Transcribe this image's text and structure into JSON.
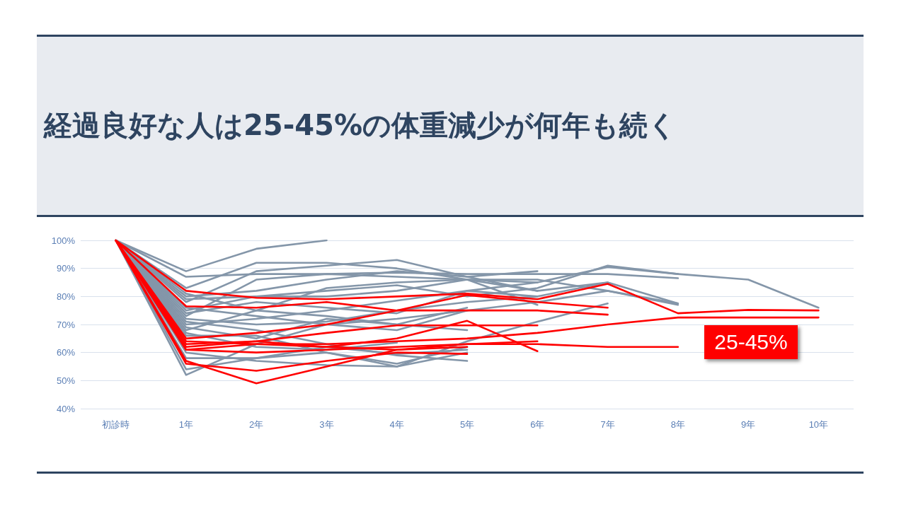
{
  "chart_data": {
    "type": "line",
    "title": "経過良好な人は25-45%の体重減少が何年も続く",
    "categories": [
      "初診時",
      "1年",
      "2年",
      "3年",
      "4年",
      "5年",
      "6年",
      "7年",
      "8年",
      "9年",
      "10年"
    ],
    "ylim": [
      40,
      100
    ],
    "yticks": [
      {
        "value": 40,
        "label": "40%"
      },
      {
        "value": 50,
        "label": "50%"
      },
      {
        "value": 60,
        "label": "60%"
      },
      {
        "value": 70,
        "label": "70%"
      },
      {
        "value": 80,
        "label": "80%"
      },
      {
        "value": 90,
        "label": "90%"
      },
      {
        "value": 100,
        "label": "100%"
      }
    ],
    "grid": "y",
    "marker": "none",
    "line_style": "solid",
    "annotations": [
      "25-45%"
    ],
    "series": [
      {
        "color": "#8496a9",
        "values": [
          100,
          89,
          97,
          100,
          null,
          null,
          null,
          null,
          null,
          null,
          null
        ]
      },
      {
        "color": "#8496a9",
        "values": [
          100,
          87,
          88,
          88,
          88.5,
          88,
          88,
          88,
          86.5,
          null,
          null
        ]
      },
      {
        "color": "#8496a9",
        "values": [
          100,
          83,
          92,
          92,
          90,
          86,
          85,
          90.5,
          88,
          86,
          76
        ]
      },
      {
        "color": "#8496a9",
        "values": [
          100,
          78,
          89,
          91,
          93,
          87,
          82,
          null,
          null,
          null,
          null
        ]
      },
      {
        "color": "#8496a9",
        "values": [
          100,
          80,
          82,
          86,
          89,
          87,
          89,
          null,
          null,
          null,
          null
        ]
      },
      {
        "color": "#8496a9",
        "values": [
          100,
          73,
          86,
          88,
          87,
          86,
          82,
          85,
          77.5,
          null,
          null
        ]
      },
      {
        "color": "#8496a9",
        "values": [
          100,
          75,
          80,
          82,
          84,
          80,
          83,
          91,
          88,
          null,
          null
        ]
      },
      {
        "color": "#8496a9",
        "values": [
          100,
          68,
          75,
          83,
          85,
          86,
          86,
          82,
          77.5,
          null,
          null
        ]
      },
      {
        "color": "#8496a9",
        "values": [
          100,
          70,
          72,
          75,
          78.5,
          82,
          80,
          85,
          null,
          null,
          null
        ]
      },
      {
        "color": "#8496a9",
        "values": [
          100,
          72,
          70,
          71,
          75,
          78,
          80,
          null,
          null,
          null,
          null
        ]
      },
      {
        "color": "#8496a9",
        "values": [
          100,
          76,
          73,
          70,
          68,
          75,
          78,
          82,
          77,
          null,
          null
        ]
      },
      {
        "color": "#8496a9",
        "values": [
          100,
          66,
          66,
          60,
          55,
          64,
          71,
          77.5,
          null,
          null,
          null
        ]
      },
      {
        "color": "#8496a9",
        "values": [
          100,
          60,
          57,
          55.5,
          55,
          60,
          null,
          null,
          null,
          null,
          null
        ]
      },
      {
        "color": "#8496a9",
        "values": [
          100,
          52,
          63,
          70,
          72,
          75,
          null,
          null,
          null,
          null,
          null
        ]
      },
      {
        "color": "#8496a9",
        "values": [
          100,
          54,
          58,
          60,
          56,
          62,
          null,
          null,
          null,
          null,
          null
        ]
      },
      {
        "color": "#8496a9",
        "values": [
          100,
          58,
          58,
          62,
          59.5,
          61,
          null,
          null,
          null,
          null,
          null
        ]
      },
      {
        "color": "#8496a9",
        "values": [
          100,
          67,
          62,
          61,
          63.5,
          null,
          null,
          null,
          null,
          null,
          null
        ]
      },
      {
        "color": "#8496a9",
        "values": [
          100,
          74,
          78,
          76,
          74,
          82,
          85,
          null,
          null,
          null,
          null
        ]
      },
      {
        "color": "#8496a9",
        "values": [
          100,
          79,
          80,
          80,
          82,
          86,
          77,
          null,
          null,
          null,
          null
        ]
      },
      {
        "color": "#8496a9",
        "values": [
          100,
          81,
          75,
          73,
          70,
          68,
          null,
          null,
          null,
          null,
          null
        ]
      },
      {
        "color": "#8496a9",
        "values": [
          100,
          71,
          68,
          63,
          59,
          57,
          null,
          null,
          null,
          null,
          null
        ]
      },
      {
        "color": "#8496a9",
        "values": [
          100,
          69,
          65,
          72,
          70,
          76,
          null,
          null,
          null,
          null,
          null
        ]
      },
      {
        "color": "#ff0000",
        "values": [
          100,
          82,
          79.5,
          79,
          80,
          81,
          79,
          84.5,
          74,
          75.2,
          75
        ]
      },
      {
        "color": "#ff0000",
        "values": [
          100,
          61,
          63,
          63,
          64,
          65,
          67,
          70,
          72.5,
          72.5,
          72.5
        ]
      },
      {
        "color": "#ff0000",
        "values": [
          100,
          63,
          64,
          62,
          65,
          71.3,
          60.5,
          null,
          null,
          null,
          null
        ]
      },
      {
        "color": "#ff0000",
        "values": [
          100,
          61,
          60,
          61,
          62,
          63,
          63,
          62,
          62,
          null,
          null
        ]
      },
      {
        "color": "#ff0000",
        "values": [
          100,
          57,
          49,
          55,
          61,
          63,
          64,
          null,
          null,
          null,
          null
        ]
      },
      {
        "color": "#ff0000",
        "values": [
          100,
          56,
          53.5,
          57,
          60,
          59.5,
          null,
          null,
          null,
          null,
          null
        ]
      },
      {
        "color": "#ff0000",
        "values": [
          100,
          76.5,
          76,
          78,
          75,
          75,
          75,
          73.5,
          null,
          null,
          null
        ]
      },
      {
        "color": "#ff0000",
        "values": [
          100,
          65,
          67,
          70,
          75,
          80.5,
          78,
          76,
          null,
          null,
          null
        ]
      },
      {
        "color": "#ff0000",
        "values": [
          100,
          62,
          64,
          67,
          69.7,
          69.7,
          69.7,
          null,
          null,
          null,
          null
        ]
      },
      {
        "color": "#ff0000",
        "values": [
          100,
          64,
          63,
          62,
          61,
          62,
          null,
          null,
          null,
          null,
          null
        ]
      }
    ]
  }
}
